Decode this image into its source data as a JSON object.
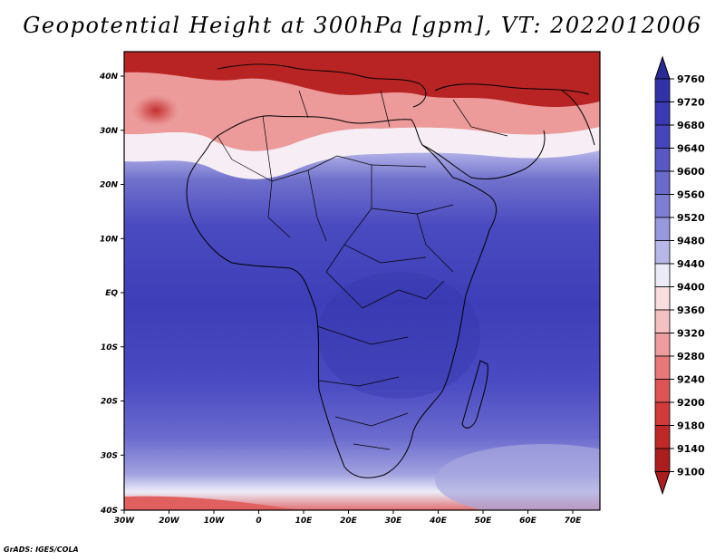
{
  "title": "Geopotential Height at 300hPa [gpm], VT: 2022012006",
  "credit": "GrADS: IGES/COLA",
  "map": {
    "variable": "Geopotential Height",
    "level": "300hPa",
    "units": "gpm",
    "valid_time": "2022012006",
    "region": "Africa",
    "lon_labels": [
      "30W",
      "20W",
      "10W",
      "0",
      "10E",
      "20E",
      "30E",
      "40E",
      "50E",
      "60E",
      "70E"
    ],
    "lat_labels": [
      "40N",
      "30N",
      "20N",
      "10N",
      "EQ",
      "10S",
      "20S",
      "30S",
      "40S"
    ]
  },
  "colorbar": {
    "levels": [
      "9760",
      "9720",
      "9680",
      "9640",
      "9600",
      "9560",
      "9520",
      "9480",
      "9440",
      "9400",
      "9360",
      "9320",
      "9280",
      "9240",
      "9200",
      "9180",
      "9140",
      "9100"
    ],
    "colors": [
      "#2a2a96",
      "#3232a8",
      "#3a3ab4",
      "#4646bc",
      "#5858c4",
      "#6a6acc",
      "#7e7ed4",
      "#9898dc",
      "#b8b8e8",
      "#ececf8",
      "#f8dede",
      "#f4c0c0",
      "#ee9c9c",
      "#e87878",
      "#de5454",
      "#d23a3a",
      "#c02828",
      "#ac1e1e"
    ]
  }
}
